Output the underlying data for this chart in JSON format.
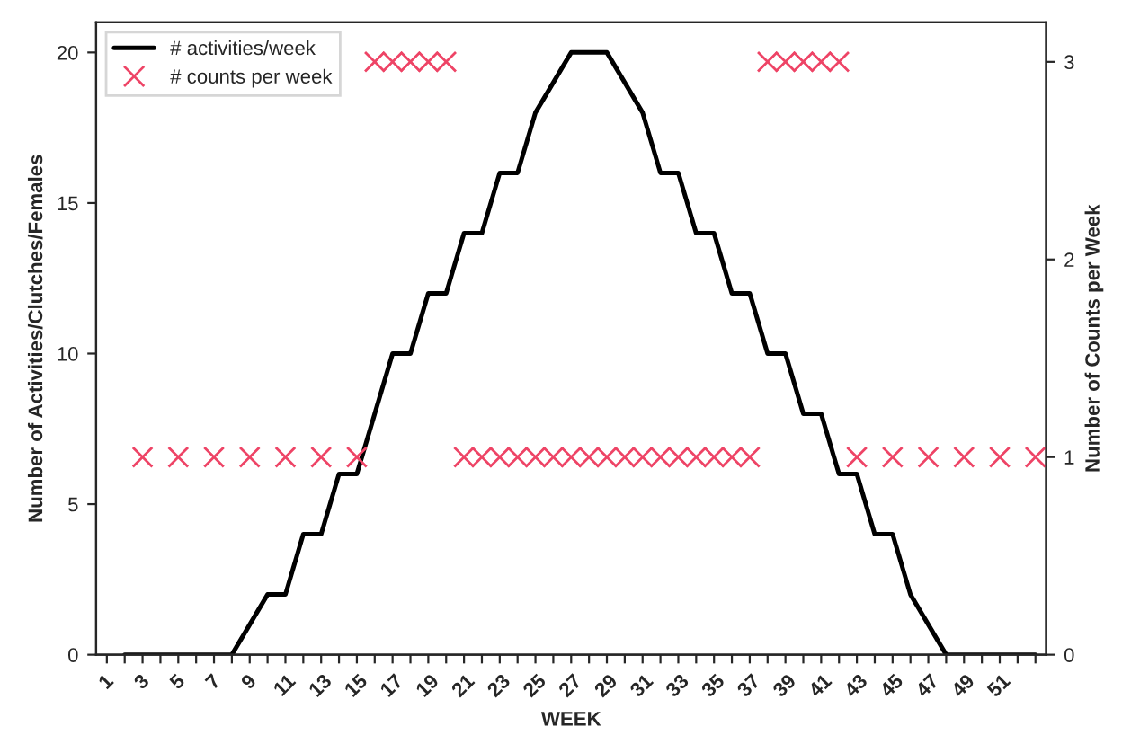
{
  "chart_data": {
    "type": "line",
    "xlabel": "WEEK",
    "ylabel": "Number of Activities/Clutches/Females",
    "y2label": "Number of Counts per Week",
    "categories": [
      "1",
      null,
      "3",
      null,
      "5",
      null,
      "7",
      null,
      "9",
      null,
      "11",
      null,
      "13",
      null,
      "15",
      null,
      "17",
      null,
      "19",
      null,
      "21",
      null,
      "23",
      null,
      "25",
      null,
      "27",
      null,
      "29",
      null,
      "31",
      null,
      "33",
      null,
      "35",
      null,
      "37",
      null,
      "39",
      null,
      "41",
      null,
      "43",
      null,
      "45",
      null,
      "47",
      null,
      "49",
      null,
      "51",
      null,
      null
    ],
    "series": [
      {
        "name": "# activities/week",
        "color": "#000000",
        "marker": "none",
        "line_style": "solid",
        "values": [
          null,
          0,
          0,
          0,
          0,
          0,
          0,
          0,
          1,
          2,
          2,
          4,
          4,
          6,
          6,
          8,
          10,
          10,
          12,
          12,
          14,
          14,
          16,
          16,
          18,
          19,
          20,
          20,
          20,
          19,
          18,
          16,
          16,
          14,
          14,
          12,
          12,
          10,
          10,
          8,
          8,
          6,
          6,
          4,
          4,
          2,
          1,
          0,
          0,
          0,
          0,
          0,
          0
        ]
      },
      {
        "name": "# counts per week",
        "type": "scatter",
        "axis": "y2",
        "color": "#ee4466",
        "marker": "cross",
        "values": [
          null,
          null,
          1,
          null,
          1,
          null,
          1,
          null,
          1,
          null,
          1,
          null,
          1,
          null,
          1,
          3,
          3,
          3,
          3,
          3,
          1,
          1,
          1,
          1,
          1,
          1,
          1,
          1,
          1,
          1,
          1,
          1,
          1,
          1,
          1,
          1,
          1,
          3,
          3,
          3,
          3,
          3,
          1,
          null,
          1,
          null,
          1,
          null,
          1,
          null,
          1,
          null,
          1
        ]
      }
    ],
    "ylim": [
      0,
      21
    ],
    "yticks": [
      0,
      5,
      10,
      15,
      20
    ],
    "y2lim": [
      0,
      3.2
    ],
    "y2ticks": [
      0,
      1,
      2,
      3
    ],
    "grid": false,
    "legend": "top left"
  }
}
